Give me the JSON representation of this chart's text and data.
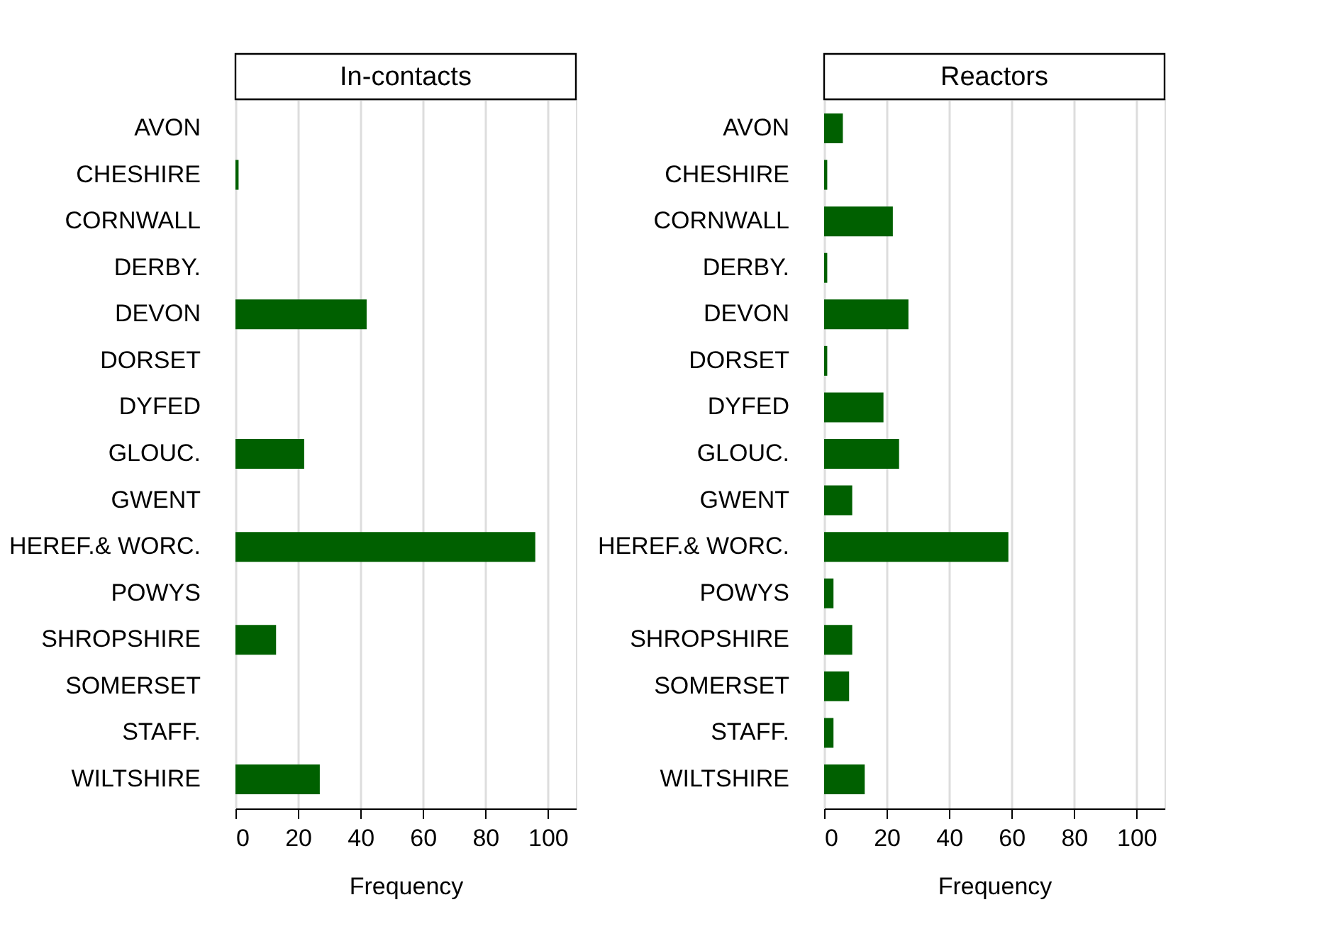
{
  "chart_data": [
    {
      "type": "bar",
      "orientation": "horizontal",
      "title": "In-contacts",
      "xlabel": "Frequency",
      "color": "#006000",
      "grid": "x",
      "xlim": [
        0,
        109
      ],
      "xticks": [
        0,
        20,
        40,
        60,
        80,
        100
      ],
      "categories": [
        "AVON",
        "CHESHIRE",
        "CORNWALL",
        "DERBY.",
        "DEVON",
        "DORSET",
        "DYFED",
        "GLOUC.",
        "GWENT",
        "HEREF.& WORC.",
        "POWYS",
        "SHROPSHIRE",
        "SOMERSET",
        "STAFF.",
        "WILTSHIRE"
      ],
      "values": [
        0,
        1,
        0,
        0,
        42,
        0,
        0,
        22,
        0,
        96,
        0,
        13,
        0,
        0,
        27
      ]
    },
    {
      "type": "bar",
      "orientation": "horizontal",
      "title": "Reactors",
      "xlabel": "Frequency",
      "color": "#006000",
      "grid": "x",
      "xlim": [
        0,
        109
      ],
      "xticks": [
        0,
        20,
        40,
        60,
        80,
        100
      ],
      "categories": [
        "AVON",
        "CHESHIRE",
        "CORNWALL",
        "DERBY.",
        "DEVON",
        "DORSET",
        "DYFED",
        "GLOUC.",
        "GWENT",
        "HEREF.& WORC.",
        "POWYS",
        "SHROPSHIRE",
        "SOMERSET",
        "STAFF.",
        "WILTSHIRE"
      ],
      "values": [
        6,
        1,
        22,
        1,
        27,
        1,
        19,
        24,
        9,
        59,
        3,
        9,
        8,
        3,
        13
      ]
    }
  ]
}
